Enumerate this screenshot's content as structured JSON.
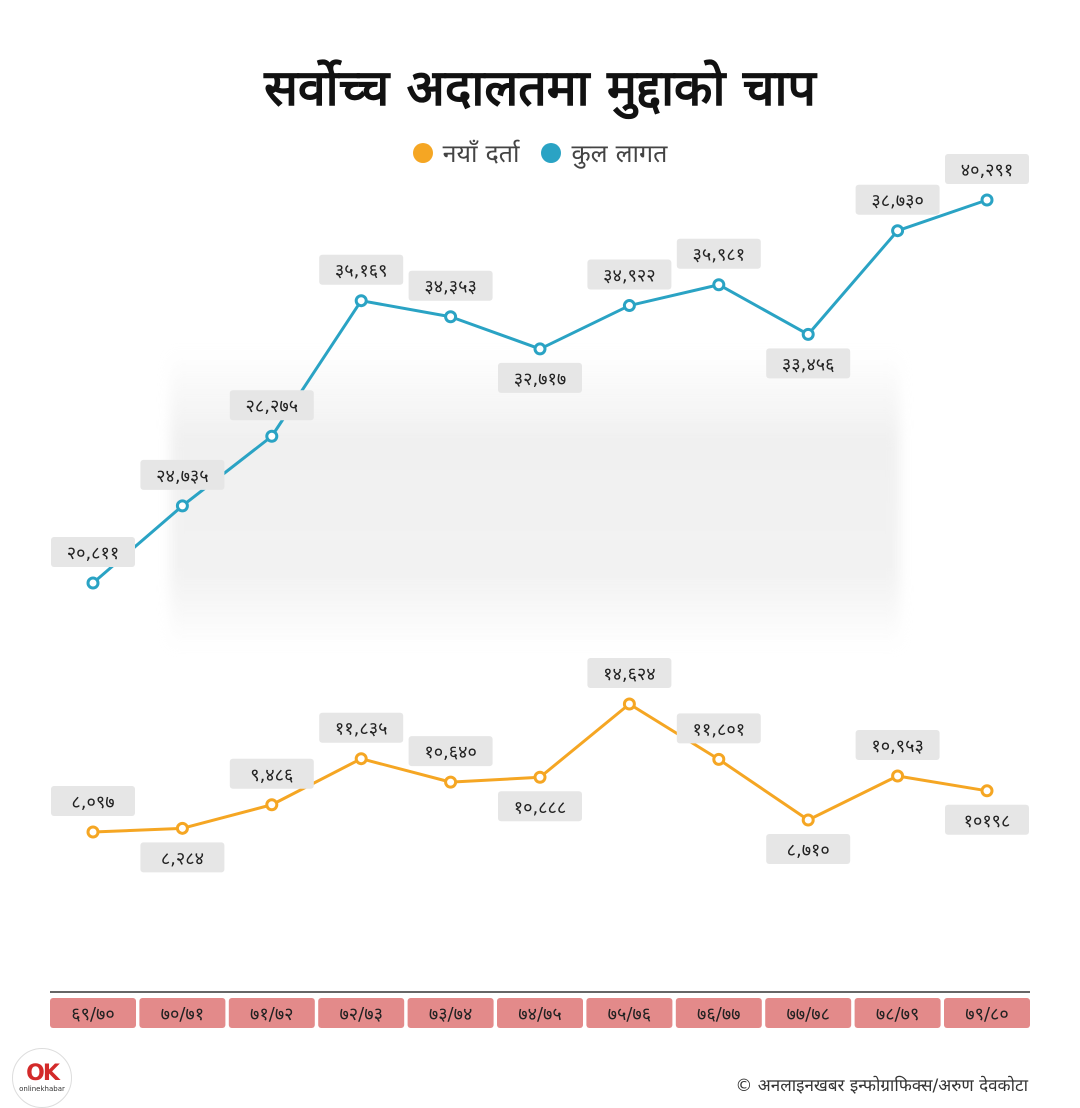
{
  "brand": {
    "logo_mark": "OK",
    "logo_text": "onlinekhabar"
  },
  "credit": "© अनलाइनखबर इन्फोग्राफिक्स/अरुण देवकोटा",
  "colors": {
    "new_cases": "#f5a623",
    "total_cases": "#2aa3c4",
    "label_bg": "#e6e6e6",
    "year_bg": "#e38a8a"
  },
  "chart_data": {
    "type": "line",
    "title": "सर्वोच्च अदालतमा मुद्दाको चाप",
    "categories": [
      "६९/७०",
      "७०/७१",
      "७१/७२",
      "७२/७३",
      "७३/७४",
      "७४/७५",
      "७५/७६",
      "७६/७७",
      "७७/७८",
      "७८/७९",
      "७९/८०"
    ],
    "series": [
      {
        "name": "कुल लागत",
        "color": "#2aa3c4",
        "values": [
          20811,
          24735,
          28275,
          35169,
          34353,
          32717,
          34922,
          35981,
          33456,
          38730,
          40291
        ],
        "labels": [
          "२०,८११",
          "२४,७३५",
          "२८,२७५",
          "३५,१६९",
          "३४,३५३",
          "३२,७१७",
          "३४,९२२",
          "३५,९८१",
          "३३,४५६",
          "३८,७३०",
          "४०,२९१"
        ]
      },
      {
        "name": "नयाँ दर्ता",
        "color": "#f5a623",
        "values": [
          8097,
          8284,
          9486,
          11835,
          10640,
          10888,
          14624,
          11801,
          8710,
          10953,
          10198
        ],
        "labels": [
          "८,०९७",
          "८,२८४",
          "९,४८६",
          "११,८३५",
          "१०,६४०",
          "१०,८८८",
          "१४,६२४",
          "११,८०१",
          "८,७१०",
          "१०,९५३",
          "१०१९८"
        ]
      }
    ],
    "legend": [
      "नयाँ दर्ता",
      "कुल लागत"
    ],
    "legend_position": "top-center",
    "grid": false,
    "xlabel": "",
    "ylabel": ""
  }
}
